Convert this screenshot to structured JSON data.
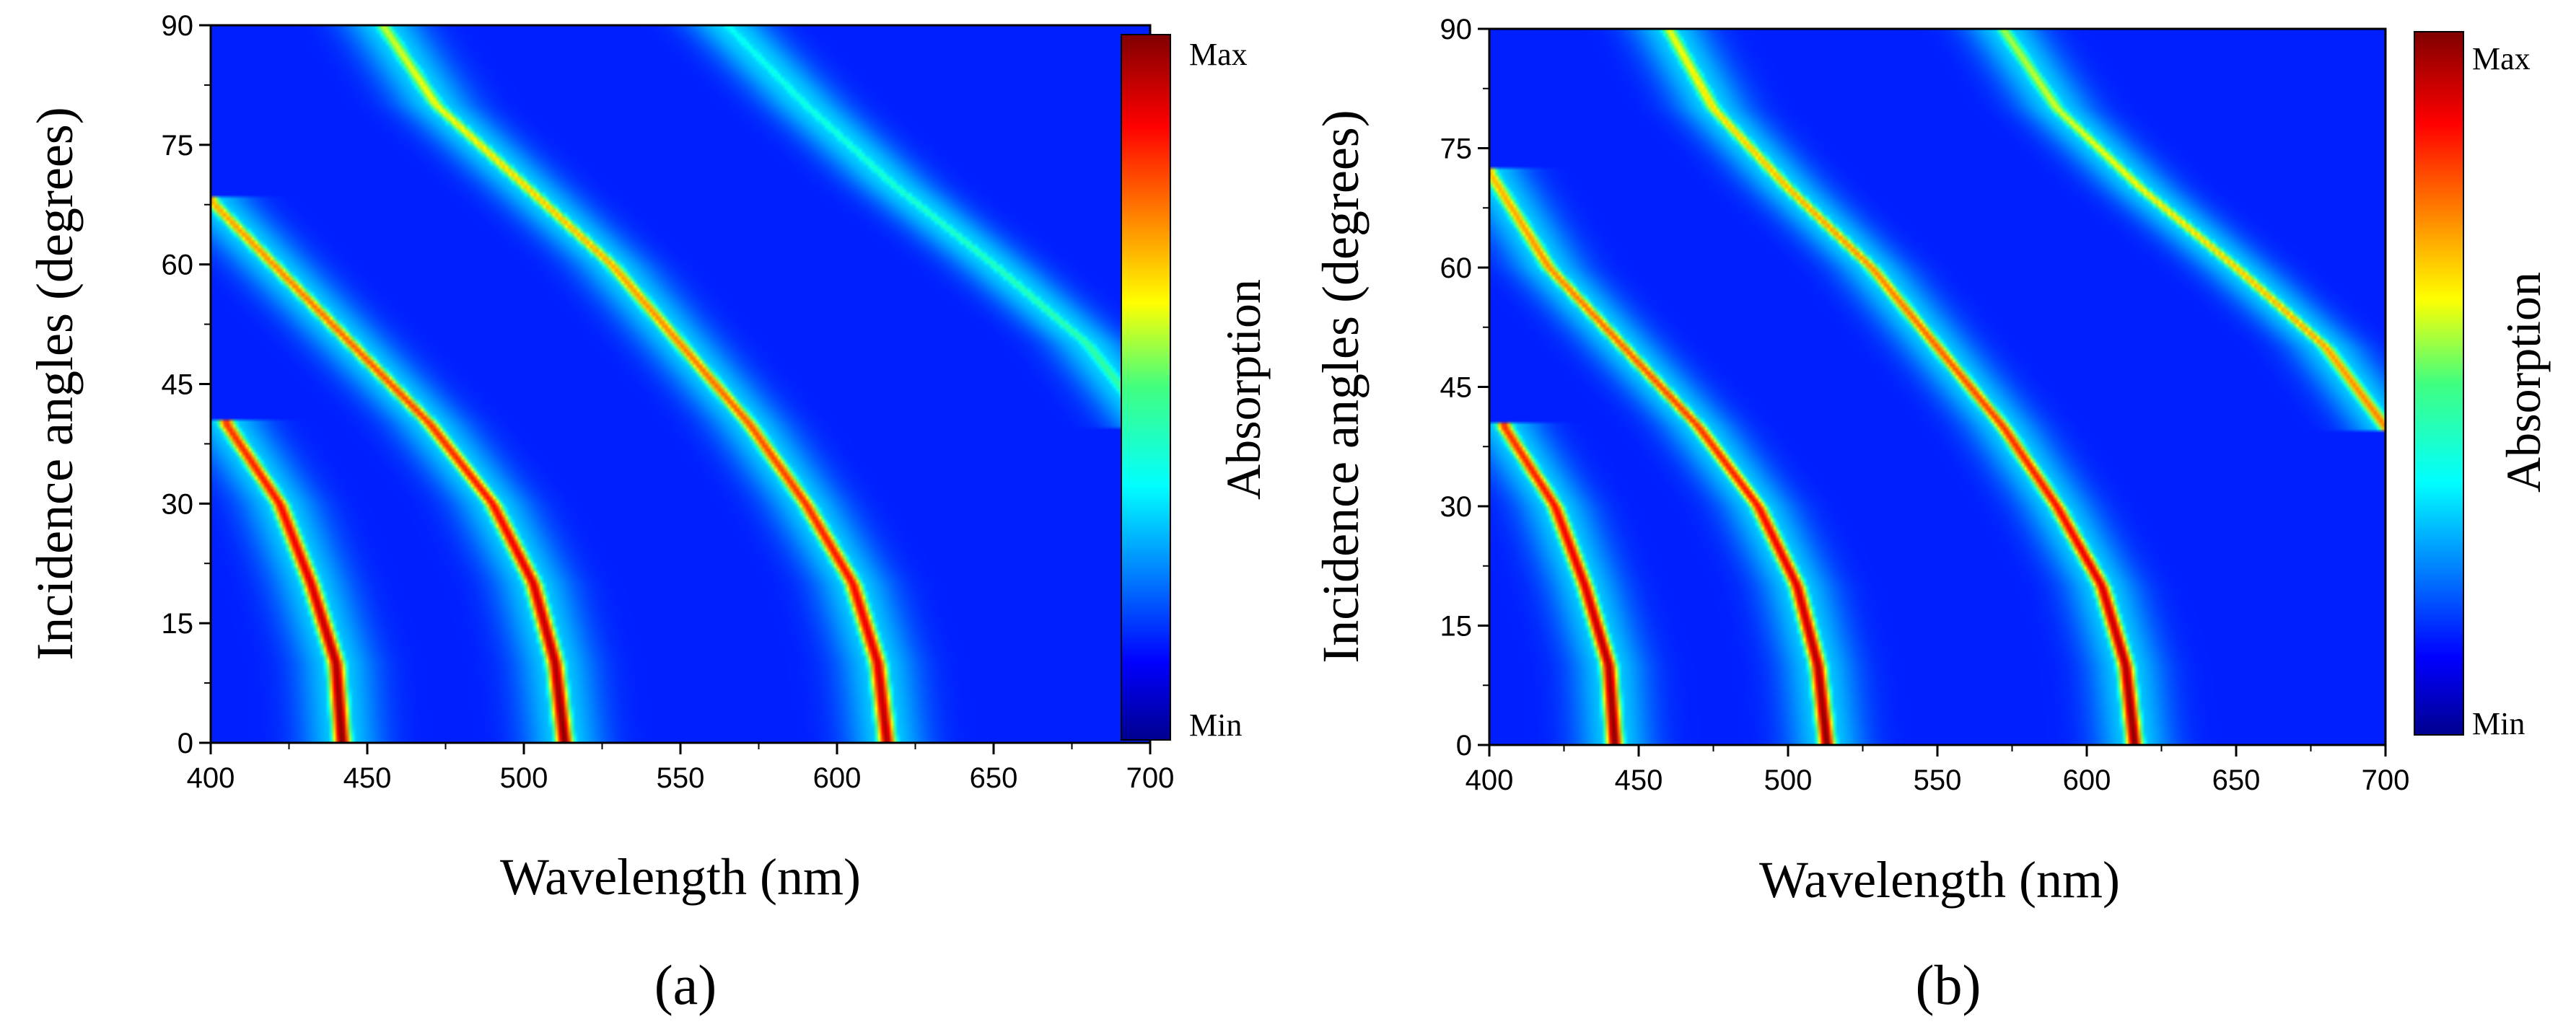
{
  "chart_data": [
    {
      "type": "heatmap",
      "panel_label": "(a)",
      "xlabel": "Wavelength (nm)",
      "ylabel": "Incidence angles (degrees)",
      "xlim": [
        400,
        700
      ],
      "ylim": [
        0,
        90
      ],
      "xticks": [
        400,
        450,
        500,
        550,
        600,
        650,
        700
      ],
      "yticks": [
        0,
        15,
        30,
        45,
        60,
        75,
        90
      ],
      "colorbar": {
        "title": "Absorption",
        "max_label": "Max",
        "min_label": "Min"
      },
      "background_level": 0.14,
      "bands": [
        {
          "name": "mode 1",
          "points": [
            [
              442,
              0
            ],
            [
              440,
              10
            ],
            [
              432,
              20
            ],
            [
              422,
              30
            ],
            [
              405,
              40
            ]
          ],
          "peak": 1.0
        },
        {
          "name": "mode 2",
          "points": [
            [
              513,
              0
            ],
            [
              510,
              10
            ],
            [
              503,
              20
            ],
            [
              490,
              30
            ],
            [
              470,
              40
            ],
            [
              445,
              50
            ],
            [
              420,
              60
            ],
            [
              400,
              68
            ]
          ],
          "peak": 1.0
        },
        {
          "name": "mode 3",
          "points": [
            [
              616,
              0
            ],
            [
              613,
              10
            ],
            [
              605,
              20
            ],
            [
              590,
              30
            ],
            [
              572,
              40
            ],
            [
              550,
              50
            ],
            [
              528,
              60
            ],
            [
              500,
              70
            ],
            [
              472,
              80
            ],
            [
              455,
              90
            ]
          ],
          "peak": 0.95
        },
        {
          "name": "mode 4",
          "points": [
            [
              700,
              40
            ],
            [
              680,
              50
            ],
            [
              650,
              60
            ],
            [
              618,
              70
            ],
            [
              590,
              80
            ],
            [
              565,
              90
            ]
          ],
          "peak": 0.5
        }
      ]
    },
    {
      "type": "heatmap",
      "panel_label": "(b)",
      "xlabel": "Wavelength (nm)",
      "ylabel": "Incidence angles (degrees)",
      "xlim": [
        400,
        700
      ],
      "ylim": [
        0,
        90
      ],
      "xticks": [
        400,
        450,
        500,
        550,
        600,
        650,
        700
      ],
      "yticks": [
        0,
        15,
        30,
        45,
        60,
        75,
        90
      ],
      "colorbar": {
        "title": "Absorption",
        "max_label": "Max",
        "min_label": "Min"
      },
      "background_level": 0.14,
      "bands": [
        {
          "name": "mode 1",
          "points": [
            [
              442,
              0
            ],
            [
              440,
              10
            ],
            [
              432,
              20
            ],
            [
              422,
              30
            ],
            [
              405,
              40
            ]
          ],
          "peak": 1.0
        },
        {
          "name": "mode 2",
          "points": [
            [
              513,
              0
            ],
            [
              510,
              10
            ],
            [
              503,
              20
            ],
            [
              490,
              30
            ],
            [
              470,
              40
            ],
            [
              445,
              50
            ],
            [
              420,
              60
            ],
            [
              400,
              72
            ]
          ],
          "peak": 1.0
        },
        {
          "name": "mode 3",
          "points": [
            [
              616,
              0
            ],
            [
              613,
              10
            ],
            [
              605,
              20
            ],
            [
              590,
              30
            ],
            [
              572,
              40
            ],
            [
              550,
              50
            ],
            [
              528,
              60
            ],
            [
              500,
              70
            ],
            [
              475,
              80
            ],
            [
              460,
              90
            ]
          ],
          "peak": 1.0
        },
        {
          "name": "mode 4",
          "points": [
            [
              700,
              40
            ],
            [
              680,
              50
            ],
            [
              650,
              60
            ],
            [
              618,
              70
            ],
            [
              590,
              80
            ],
            [
              572,
              90
            ]
          ],
          "peak": 0.9
        }
      ]
    }
  ]
}
